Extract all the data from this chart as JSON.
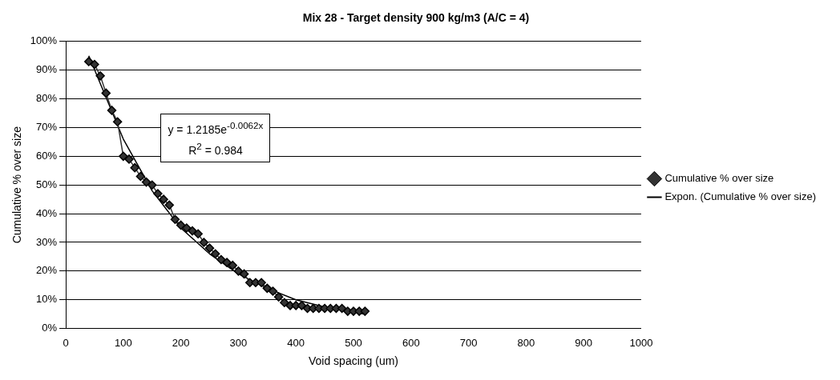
{
  "chart_data": {
    "type": "scatter",
    "title": "Mix 28 - Target density 900 kg/m3 (A/C = 4)",
    "xlabel": "Void spacing (um)",
    "ylabel": "Cumulative % over size",
    "xlim": [
      0,
      1000
    ],
    "xticks": [
      0,
      100,
      200,
      300,
      400,
      500,
      600,
      700,
      800,
      900,
      1000
    ],
    "ylim": [
      0,
      100
    ],
    "yticks": [
      {
        "value": 0,
        "label": "0%"
      },
      {
        "value": 10,
        "label": "10%"
      },
      {
        "value": 20,
        "label": "20%"
      },
      {
        "value": 30,
        "label": "30%"
      },
      {
        "value": 40,
        "label": "40%"
      },
      {
        "value": 50,
        "label": "50%"
      },
      {
        "value": 60,
        "label": "60%"
      },
      {
        "value": 70,
        "label": "70%"
      },
      {
        "value": 80,
        "label": "80%"
      },
      {
        "value": 90,
        "label": "90%"
      },
      {
        "value": 100,
        "label": "100%"
      }
    ],
    "grid": "y",
    "legend": "right",
    "marker": "diamond",
    "annotations": [
      "y = 1.2185e$^{-0.0062x}$",
      "R$^{2}$ = 0.984"
    ],
    "series": [
      {
        "name": "Cumulative % over size",
        "type": "line",
        "color": "#333333",
        "x": [
          40,
          50,
          60,
          70,
          80,
          90,
          100,
          110,
          120,
          130,
          140,
          150,
          160,
          170,
          180,
          190,
          200,
          210,
          220,
          230,
          240,
          250,
          260,
          270,
          280,
          290,
          300,
          310,
          320,
          330,
          340,
          350,
          360,
          370,
          380,
          390,
          400,
          410,
          420,
          430,
          440,
          450,
          460,
          470,
          480,
          490,
          500,
          510,
          520
        ],
        "values": [
          93,
          92,
          88,
          82,
          76,
          72,
          60,
          59,
          56,
          53,
          51,
          50,
          47,
          45,
          43,
          38,
          36,
          35,
          34,
          33,
          30,
          28,
          26,
          24,
          23,
          22,
          20,
          19,
          16,
          16,
          16,
          14,
          13,
          11,
          9,
          8,
          8,
          8,
          7,
          7,
          7,
          7,
          7,
          7,
          7,
          6,
          6,
          6,
          6
        ]
      },
      {
        "name": "Expon. (Cumulative % over size)",
        "type": "line",
        "marker": "none",
        "color": "#000000",
        "x": [
          40,
          100,
          150,
          200,
          250,
          300,
          350,
          400,
          450,
          520
        ],
        "values": [
          95,
          66,
          48,
          35,
          26,
          19,
          14,
          10,
          7.5,
          5
        ]
      }
    ]
  }
}
